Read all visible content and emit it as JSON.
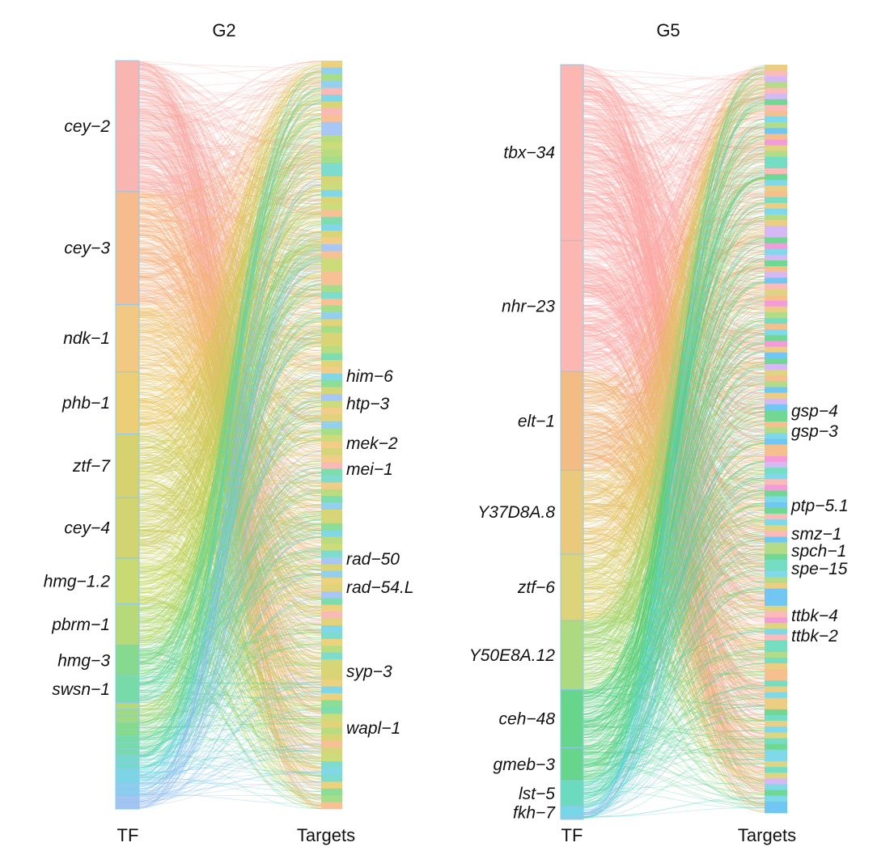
{
  "chart_data": [
    {
      "type": "alluvial",
      "title": "G2",
      "source_axis_label": "TF",
      "target_axis_label": "Targets",
      "tf_labels": [
        "cey−2",
        "cey−3",
        "ndk−1",
        "phb−1",
        "ztf−7",
        "cey−4",
        "hmg−1.2",
        "pbrm−1",
        "hmg−3",
        "swsn−1"
      ],
      "tf_share_pct": [
        17.5,
        15.1,
        9.0,
        8.3,
        8.5,
        8.1,
        6.1,
        5.5,
        4.1,
        3.6
      ],
      "target_labels": [
        "him−6",
        "htp−3",
        "mek−2",
        "mei−1",
        "rad−50",
        "rad−54.L",
        "syp−3",
        "wapl−1"
      ],
      "colors": [
        "#f8a8a4",
        "#f5b07a",
        "#efbf6c",
        "#e7c55e",
        "#d9c857",
        "#cfca55",
        "#c9cc58",
        "#bfd35a",
        "#a9d362",
        "#8fd46b",
        "#6fd47c",
        "#5fd39a",
        "#5cd3c0",
        "#62cde0",
        "#78c4ec",
        "#93b9f1"
      ]
    },
    {
      "type": "alluvial",
      "title": "G5",
      "source_axis_label": "TF",
      "target_axis_label": "Targets",
      "tf_labels": [
        "tbx−34",
        "nhr−23",
        "elt−1",
        "Y37D8A.8",
        "ztf−6",
        "Y50E8A.12",
        "ceh−48",
        "gmeb−3",
        "lst−5",
        "fkh−7"
      ],
      "tf_share_pct": [
        23.5,
        17.5,
        13.2,
        11.2,
        8.9,
        9.2,
        7.8,
        4.4,
        3.4,
        1.7
      ],
      "target_labels": [
        "gsp−4",
        "gsp−3",
        "ptp−5.1",
        "smz−1",
        "spch−1",
        "spe−15",
        "ttbk−4",
        "ttbk−2"
      ],
      "colors": [
        "#fbaaa6",
        "#f2b070",
        "#e6c065",
        "#d6cb63",
        "#9fd36a",
        "#4dce79",
        "#52d4b2",
        "#5fcfe3",
        "#4db8f0",
        "#c9a8f2",
        "#f083d0"
      ]
    }
  ]
}
